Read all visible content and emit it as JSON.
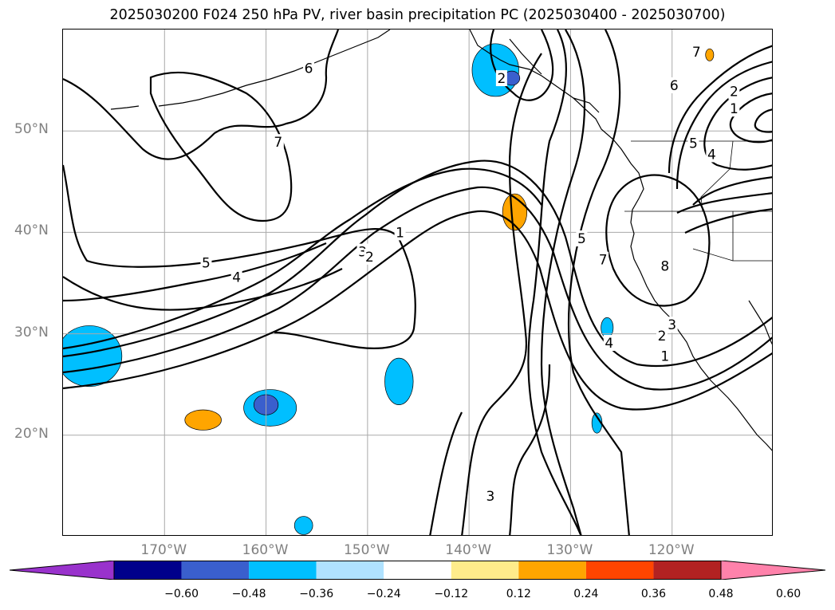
{
  "title": "2025030200 F024 250 hPa PV, river basin precipitation PC (2025030400 - 2025030700)",
  "map": {
    "lat_ticks": [
      {
        "label": "50°N",
        "lat": 50
      },
      {
        "label": "40°N",
        "lat": 40
      },
      {
        "label": "30°N",
        "lat": 30
      },
      {
        "label": "20°N",
        "lat": 20
      }
    ],
    "lon_ticks": [
      {
        "label": "170°W",
        "lon": -170
      },
      {
        "label": "160°W",
        "lon": -160
      },
      {
        "label": "150°W",
        "lon": -150
      },
      {
        "label": "140°W",
        "lon": -140
      },
      {
        "label": "130°W",
        "lon": -130
      },
      {
        "label": "120°W",
        "lon": -120
      }
    ],
    "contour_labels": [
      {
        "text": "6",
        "lon": -155.8,
        "lat": 56.2
      },
      {
        "text": "7",
        "lon": -158.8,
        "lat": 48.9
      },
      {
        "text": "5",
        "lon": -165.9,
        "lat": 37.0
      },
      {
        "text": "4",
        "lon": -162.9,
        "lat": 35.6
      },
      {
        "text": "3",
        "lon": -150.5,
        "lat": 38.1
      },
      {
        "text": "2",
        "lon": -149.8,
        "lat": 37.6
      },
      {
        "text": "1",
        "lon": -146.8,
        "lat": 40.0
      },
      {
        "text": "2",
        "lon": -136.8,
        "lat": 55.2
      },
      {
        "text": "7",
        "lon": -117.6,
        "lat": 57.8
      },
      {
        "text": "6",
        "lon": -119.8,
        "lat": 54.5
      },
      {
        "text": "2",
        "lon": -113.9,
        "lat": 53.9
      },
      {
        "text": "1",
        "lon": -113.9,
        "lat": 52.2
      },
      {
        "text": "5",
        "lon": -117.9,
        "lat": 48.8
      },
      {
        "text": "4",
        "lon": -116.1,
        "lat": 47.7
      },
      {
        "text": "5",
        "lon": -128.9,
        "lat": 39.4
      },
      {
        "text": "7",
        "lon": -126.8,
        "lat": 37.3
      },
      {
        "text": "8",
        "lon": -120.7,
        "lat": 36.7
      },
      {
        "text": "4",
        "lon": -126.2,
        "lat": 29.1
      },
      {
        "text": "3",
        "lon": -120.0,
        "lat": 30.9
      },
      {
        "text": "2",
        "lon": -121.0,
        "lat": 29.8
      },
      {
        "text": "1",
        "lon": -120.7,
        "lat": 27.8
      },
      {
        "text": "3",
        "lon": -137.9,
        "lat": 14.0
      }
    ],
    "shaded_areas": [
      {
        "color": "#00bfff",
        "lon": -137.4,
        "lat": 56.0,
        "rlon": 2.3,
        "rlat": 2.6
      },
      {
        "color": "#3a5fcd",
        "lon": -135.8,
        "lat": 55.2,
        "rlon": 0.8,
        "rlat": 0.7
      },
      {
        "color": "#ffa500",
        "lon": -116.3,
        "lat": 57.5,
        "rlon": 0.4,
        "rlat": 0.6
      },
      {
        "color": "#ffa500",
        "lon": -135.5,
        "lat": 42.0,
        "rlon": 1.2,
        "rlat": 1.8
      },
      {
        "color": "#00bfff",
        "lon": -126.4,
        "lat": 30.6,
        "rlon": 0.6,
        "rlat": 1.0
      },
      {
        "color": "#00bfff",
        "lon": -177.4,
        "lat": 27.8,
        "rlon": 3.2,
        "rlat": 3.0
      },
      {
        "color": "#00bfff",
        "lon": -146.9,
        "lat": 25.3,
        "rlon": 1.4,
        "rlat": 2.3
      },
      {
        "color": "#ffa500",
        "lon": -166.2,
        "lat": 21.5,
        "rlon": 1.8,
        "rlat": 1.0
      },
      {
        "color": "#00bfff",
        "lon": -159.6,
        "lat": 22.7,
        "rlon": 2.6,
        "rlat": 1.8
      },
      {
        "color": "#3a5fcd",
        "lon": -160.0,
        "lat": 23.0,
        "rlon": 1.2,
        "rlat": 1.0
      },
      {
        "color": "#00bfff",
        "lon": -127.4,
        "lat": 21.2,
        "rlon": 0.5,
        "rlat": 1.0
      },
      {
        "color": "#00bfff",
        "lon": -156.3,
        "lat": 11.1,
        "rlon": 0.9,
        "rlat": 0.9
      }
    ],
    "colors": {
      "contour": "#000000",
      "grid": "#aaaaaa",
      "coast": "#000000"
    }
  },
  "colorbar": {
    "colors": [
      "#9932cc",
      "#00008b",
      "#3a5fcd",
      "#00bfff",
      "#b0e2ff",
      "#ffffff",
      "#ffec8b",
      "#ffa500",
      "#ff4500",
      "#b22222",
      "#ff82ab"
    ],
    "ticks": [
      "−0.60",
      "−0.48",
      "−0.36",
      "−0.24",
      "−0.12",
      "0.12",
      "0.24",
      "0.36",
      "0.48",
      "0.60"
    ]
  }
}
